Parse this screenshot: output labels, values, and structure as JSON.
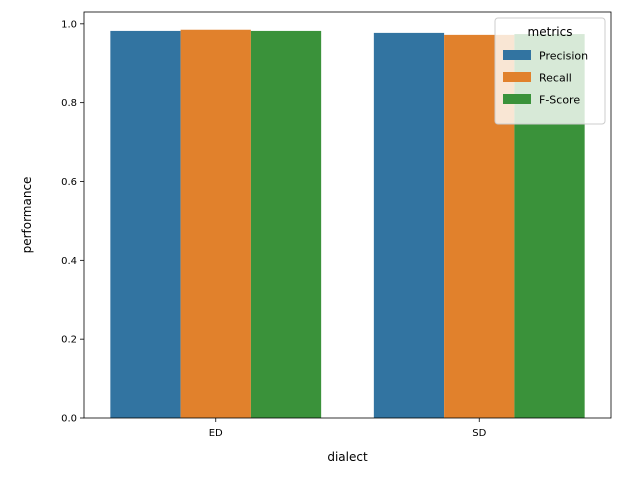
{
  "chart_data": {
    "type": "bar",
    "categories": [
      "ED",
      "SD"
    ],
    "series": [
      {
        "name": "Precision",
        "values": [
          0.982,
          0.977
        ]
      },
      {
        "name": "Recall",
        "values": [
          0.985,
          0.972
        ]
      },
      {
        "name": "F-Score",
        "values": [
          0.982,
          0.974
        ]
      }
    ],
    "colors": [
      "#3274a1",
      "#e1812c",
      "#3a923a"
    ],
    "xlabel": "dialect",
    "ylabel": "performance",
    "ylim": [
      0,
      1.03
    ],
    "yticks": [
      0.0,
      0.2,
      0.4,
      0.6,
      0.8,
      1.0
    ],
    "ytick_labels": [
      "0.0",
      "0.2",
      "0.4",
      "0.6",
      "0.8",
      "1.0"
    ],
    "grid": false,
    "legend": {
      "title": "metrics",
      "placement": "top-right"
    }
  }
}
